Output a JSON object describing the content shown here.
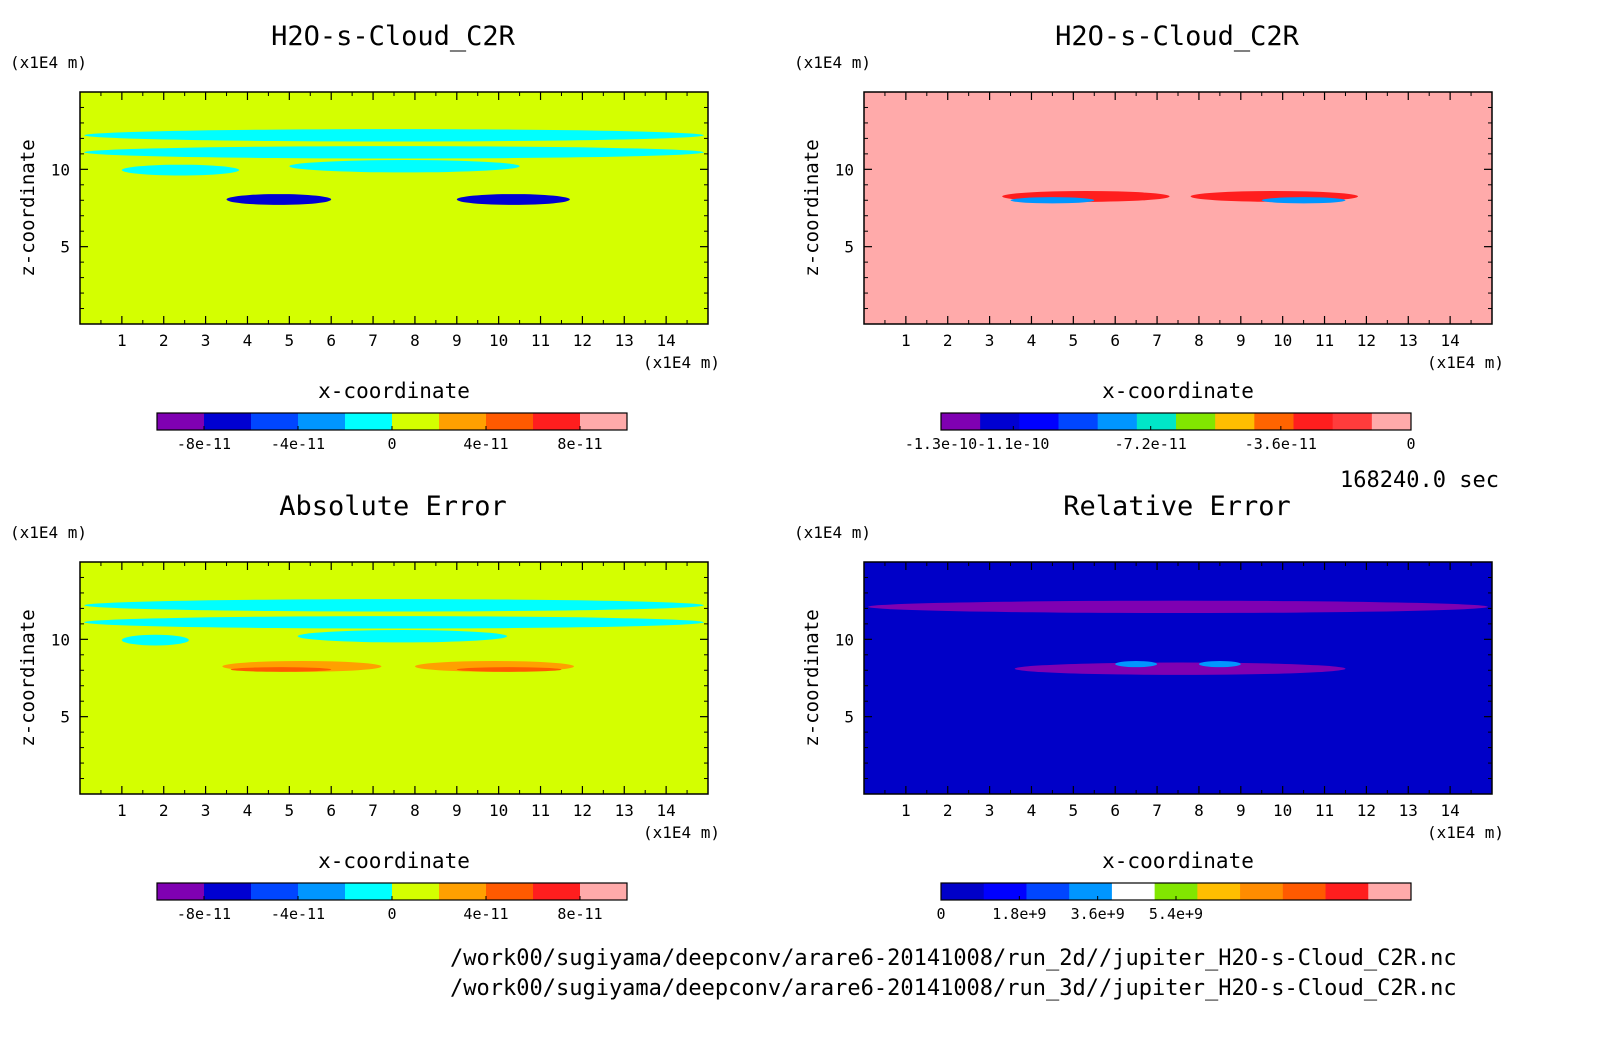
{
  "time_label": "168240.0 sec",
  "file_paths": [
    "/work00/sugiyama/deepconv/arare6-20141008/run_2d//jupiter_H2O-s-Cloud_C2R.nc",
    "/work00/sugiyama/deepconv/arare6-20141008/run_3d//jupiter_H2O-s-Cloud_C2R.nc"
  ],
  "chart_data": [
    {
      "type": "heatmap",
      "title": "H2O-s-Cloud_C2R",
      "xlabel": "x-coordinate",
      "ylabel": "z-coordinate",
      "x_unit": "(x1E4 m)",
      "y_unit": "(x1E4 m)",
      "xlim": [
        0,
        15
      ],
      "ylim": [
        0,
        15
      ],
      "x_ticks": [
        1,
        2,
        3,
        4,
        5,
        6,
        7,
        8,
        9,
        10,
        11,
        12,
        13,
        14
      ],
      "y_ticks": [
        5,
        10
      ],
      "background_color": "#d4ff00",
      "colorbar": {
        "colors": [
          "#7f00b2",
          "#0000d2",
          "#0046ff",
          "#0096ff",
          "#00ffff",
          "#d4ff00",
          "#ffa000",
          "#ff5a00",
          "#ff1e1e",
          "#ffaaaa"
        ],
        "tick_labels": [
          "-8e-11",
          "-4e-11",
          "0",
          "4e-11",
          "8e-11"
        ],
        "tick_values": [
          -8e-11,
          -4e-11,
          0,
          4e-11,
          8e-11
        ],
        "range": [
          -1e-10,
          1e-10
        ]
      },
      "features": [
        {
          "value": -2e-11,
          "color": "#00ffff",
          "z_range": [
            11.8,
            12.6
          ],
          "x_range": [
            0.1,
            14.9
          ]
        },
        {
          "value": -2e-11,
          "color": "#00ffff",
          "z_range": [
            10.7,
            11.5
          ],
          "x_range": [
            0.1,
            14.9
          ]
        },
        {
          "value": -2e-11,
          "color": "#00ffff",
          "z_range": [
            9.6,
            10.3
          ],
          "x_range": [
            1.0,
            3.8
          ]
        },
        {
          "value": -2e-11,
          "color": "#00ffff",
          "z_range": [
            9.8,
            10.6
          ],
          "x_range": [
            5.0,
            10.5
          ]
        },
        {
          "value": -9e-11,
          "color": "#0000d2",
          "z_range": [
            7.7,
            8.4
          ],
          "x_range": [
            3.5,
            6.0
          ]
        },
        {
          "value": -9e-11,
          "color": "#0000d2",
          "z_range": [
            7.7,
            8.4
          ],
          "x_range": [
            9.0,
            11.7
          ]
        }
      ]
    },
    {
      "type": "heatmap",
      "title": "H2O-s-Cloud_C2R",
      "xlabel": "x-coordinate",
      "ylabel": "z-coordinate",
      "x_unit": "(x1E4 m)",
      "y_unit": "(x1E4 m)",
      "xlim": [
        0,
        15
      ],
      "ylim": [
        0,
        15
      ],
      "x_ticks": [
        1,
        2,
        3,
        4,
        5,
        6,
        7,
        8,
        9,
        10,
        11,
        12,
        13,
        14
      ],
      "y_ticks": [
        5,
        10
      ],
      "background_color": "#ffaaaa",
      "colorbar": {
        "colors": [
          "#7f00b2",
          "#0000d2",
          "#0000ff",
          "#0046ff",
          "#0096ff",
          "#00e6c8",
          "#82e600",
          "#ffbe00",
          "#ff6400",
          "#ff1e1e",
          "#ff3c3c",
          "#ffaaaa"
        ],
        "tick_labels": [
          "-1.3e-10",
          "-1.1e-10",
          "-7.2e-11",
          "-3.6e-11",
          "0"
        ],
        "tick_values": [
          -1.3e-10,
          -1.1e-10,
          -7.2e-11,
          -3.6e-11,
          0
        ],
        "range": [
          -1.3e-10,
          0
        ]
      },
      "features": [
        {
          "value": -3e-11,
          "color": "#ff1e1e",
          "z_range": [
            7.9,
            8.6
          ],
          "x_range": [
            3.3,
            7.3
          ]
        },
        {
          "value": -1e-10,
          "color": "#0096ff",
          "z_range": [
            7.8,
            8.2
          ],
          "x_range": [
            3.5,
            5.5
          ]
        },
        {
          "value": -3e-11,
          "color": "#ff1e1e",
          "z_range": [
            7.9,
            8.6
          ],
          "x_range": [
            7.8,
            11.8
          ]
        },
        {
          "value": -1e-10,
          "color": "#0096ff",
          "z_range": [
            7.8,
            8.2
          ],
          "x_range": [
            9.5,
            11.5
          ]
        }
      ]
    },
    {
      "type": "heatmap",
      "title": "Absolute Error",
      "xlabel": "x-coordinate",
      "ylabel": "z-coordinate",
      "x_unit": "(x1E4 m)",
      "y_unit": "(x1E4 m)",
      "xlim": [
        0,
        15
      ],
      "ylim": [
        0,
        15
      ],
      "x_ticks": [
        1,
        2,
        3,
        4,
        5,
        6,
        7,
        8,
        9,
        10,
        11,
        12,
        13,
        14
      ],
      "y_ticks": [
        5,
        10
      ],
      "background_color": "#d4ff00",
      "colorbar": {
        "colors": [
          "#7f00b2",
          "#0000d2",
          "#0046ff",
          "#0096ff",
          "#00ffff",
          "#d4ff00",
          "#ffa000",
          "#ff5a00",
          "#ff1e1e",
          "#ffaaaa"
        ],
        "tick_labels": [
          "-8e-11",
          "-4e-11",
          "0",
          "4e-11",
          "8e-11"
        ],
        "tick_values": [
          -8e-11,
          -4e-11,
          0,
          4e-11,
          8e-11
        ],
        "range": [
          -1e-10,
          1e-10
        ]
      },
      "features": [
        {
          "value": -2e-11,
          "color": "#00ffff",
          "z_range": [
            11.8,
            12.6
          ],
          "x_range": [
            0.1,
            14.9
          ]
        },
        {
          "value": -2e-11,
          "color": "#00ffff",
          "z_range": [
            10.7,
            11.5
          ],
          "x_range": [
            0.1,
            14.9
          ]
        },
        {
          "value": -2e-11,
          "color": "#00ffff",
          "z_range": [
            9.6,
            10.3
          ],
          "x_range": [
            1.0,
            2.6
          ]
        },
        {
          "value": -2e-11,
          "color": "#00ffff",
          "z_range": [
            9.8,
            10.6
          ],
          "x_range": [
            5.2,
            10.2
          ]
        },
        {
          "value": 3e-11,
          "color": "#ffa000",
          "z_range": [
            7.9,
            8.6
          ],
          "x_range": [
            3.4,
            7.2
          ]
        },
        {
          "value": 6e-11,
          "color": "#ff5a00",
          "z_range": [
            7.9,
            8.2
          ],
          "x_range": [
            3.6,
            6.0
          ]
        },
        {
          "value": 3e-11,
          "color": "#ffa000",
          "z_range": [
            7.9,
            8.6
          ],
          "x_range": [
            8.0,
            11.8
          ]
        },
        {
          "value": 6e-11,
          "color": "#ff5a00",
          "z_range": [
            7.9,
            8.2
          ],
          "x_range": [
            9.0,
            11.5
          ]
        }
      ]
    },
    {
      "type": "heatmap",
      "title": "Relative Error",
      "xlabel": "x-coordinate",
      "ylabel": "z-coordinate",
      "x_unit": "(x1E4 m)",
      "y_unit": "(x1E4 m)",
      "xlim": [
        0,
        15
      ],
      "ylim": [
        0,
        15
      ],
      "x_ticks": [
        1,
        2,
        3,
        4,
        5,
        6,
        7,
        8,
        9,
        10,
        11,
        12,
        13,
        14
      ],
      "y_ticks": [
        5,
        10
      ],
      "background_color": "#0000c8",
      "colorbar": {
        "colors": [
          "#0000c8",
          "#0000ff",
          "#0046ff",
          "#0096ff",
          "#ffffff",
          "#82e600",
          "#ffbe00",
          "#ff8c00",
          "#ff5a00",
          "#ff1e1e",
          "#ffaaaa"
        ],
        "tick_labels": [
          "0",
          "1.8e+9",
          "3.6e+9",
          "5.4e+9"
        ],
        "tick_values": [
          0,
          1800000000.0,
          3600000000.0,
          5400000000.0
        ],
        "range": [
          0,
          10800000000.0
        ]
      },
      "features": [
        {
          "value": 200000000.0,
          "color": "#7f00b2",
          "z_range": [
            7.7,
            8.5
          ],
          "x_range": [
            3.6,
            11.5
          ]
        },
        {
          "value": 200000000.0,
          "color": "#7f00b2",
          "z_range": [
            11.7,
            12.5
          ],
          "x_range": [
            0.1,
            14.9
          ]
        },
        {
          "value": 1200000000.0,
          "color": "#0096ff",
          "z_range": [
            8.2,
            8.6
          ],
          "x_range": [
            6.0,
            7.0
          ]
        },
        {
          "value": 1200000000.0,
          "color": "#0096ff",
          "z_range": [
            8.2,
            8.6
          ],
          "x_range": [
            8.0,
            9.0
          ]
        }
      ]
    }
  ]
}
